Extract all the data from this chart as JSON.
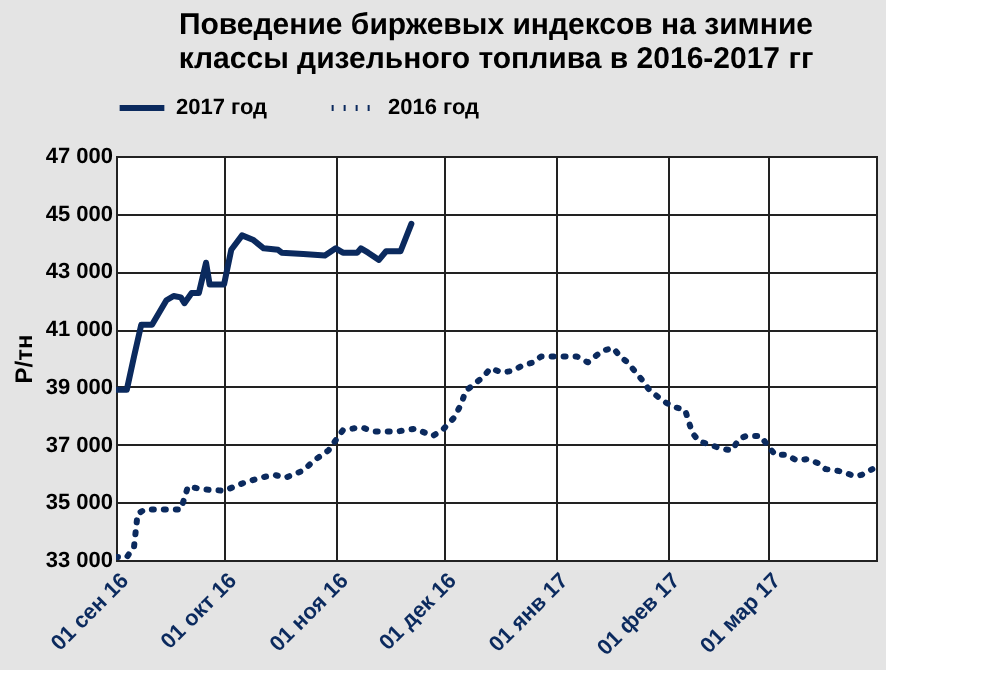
{
  "chart_data": {
    "type": "line",
    "title": [
      "Поведение биржевых индексов на зимние",
      "классы дизельного топлива в 2016-2017 гг"
    ],
    "ylabel": "Р/тн",
    "xlim": [
      "2016-09-01",
      "2017-03-31"
    ],
    "xticks": [
      {
        "value": "2016-09-01",
        "label": "01 сен 16"
      },
      {
        "value": "2016-10-01",
        "label": "01 окт 16"
      },
      {
        "value": "2016-11-01",
        "label": "01 ноя 16"
      },
      {
        "value": "2016-12-01",
        "label": "01 дек 16"
      },
      {
        "value": "2017-01-01",
        "label": "01 янв 17"
      },
      {
        "value": "2017-02-01",
        "label": "01 фев 17"
      },
      {
        "value": "2017-03-01",
        "label": "01 мар 17"
      }
    ],
    "ylim": [
      33000,
      47000
    ],
    "yticks": [
      {
        "value": 33000,
        "label": "33 000"
      },
      {
        "value": 35000,
        "label": "35 000"
      },
      {
        "value": 37000,
        "label": "37 000"
      },
      {
        "value": 39000,
        "label": "39 000"
      },
      {
        "value": 41000,
        "label": "41 000"
      },
      {
        "value": 43000,
        "label": "43 000"
      },
      {
        "value": 45000,
        "label": "45 000"
      },
      {
        "value": 47000,
        "label": "47 000"
      }
    ],
    "grid": true,
    "legend": "top",
    "series": [
      {
        "name": "2017 год",
        "color": "#0b2a5e",
        "line_style": "solid",
        "x": [
          "2016-09-01",
          "2016-09-04",
          "2016-09-06",
          "2016-09-08",
          "2016-09-11",
          "2016-09-15",
          "2016-09-17",
          "2016-09-19",
          "2016-09-20",
          "2016-09-22",
          "2016-09-24",
          "2016-09-26",
          "2016-09-27",
          "2016-10-01",
          "2016-10-03",
          "2016-10-06",
          "2016-10-09",
          "2016-10-12",
          "2016-10-16",
          "2016-10-17",
          "2016-10-23",
          "2016-10-29",
          "2016-11-01",
          "2016-11-03",
          "2016-11-07",
          "2016-11-08",
          "2016-11-10",
          "2016-11-13",
          "2016-11-15",
          "2016-11-19",
          "2016-11-22"
        ],
        "values": [
          38900,
          38900,
          40050,
          41150,
          41150,
          42000,
          42150,
          42100,
          41900,
          42250,
          42250,
          43300,
          42550,
          42550,
          43750,
          44250,
          44100,
          43800,
          43750,
          43650,
          43600,
          43550,
          43800,
          43650,
          43650,
          43800,
          43650,
          43400,
          43700,
          43700,
          44650
        ]
      },
      {
        "name": "2016 год",
        "color": "#0b2a5e",
        "line_style": "dotted",
        "x": [
          "2016-09-01",
          "2016-09-04",
          "2016-09-06",
          "2016-09-07",
          "2016-09-09",
          "2016-09-14",
          "2016-09-19",
          "2016-09-21",
          "2016-09-25",
          "2016-10-01",
          "2016-10-06",
          "2016-10-11",
          "2016-10-15",
          "2016-10-18",
          "2016-10-23",
          "2016-10-26",
          "2016-10-30",
          "2016-11-01",
          "2016-11-03",
          "2016-11-08",
          "2016-11-12",
          "2016-11-18",
          "2016-11-23",
          "2016-11-25",
          "2016-11-28",
          "2016-12-01",
          "2016-12-04",
          "2016-12-06",
          "2016-12-07",
          "2016-12-10",
          "2016-12-12",
          "2016-12-14",
          "2016-12-17",
          "2016-12-20",
          "2016-12-23",
          "2016-12-26",
          "2016-12-28",
          "2016-12-31",
          "2017-01-04",
          "2017-01-07",
          "2017-01-10",
          "2017-01-12",
          "2017-01-14",
          "2017-01-17",
          "2017-01-19",
          "2017-01-21",
          "2017-01-23",
          "2017-01-25",
          "2017-01-27",
          "2017-01-29",
          "2017-01-31",
          "2017-02-03",
          "2017-02-06",
          "2017-02-07",
          "2017-02-08",
          "2017-02-10",
          "2017-02-13",
          "2017-02-16",
          "2017-02-19",
          "2017-02-21",
          "2017-02-23",
          "2017-02-27",
          "2017-03-01",
          "2017-03-03",
          "2017-03-06",
          "2017-03-09",
          "2017-03-12",
          "2017-03-15",
          "2017-03-17",
          "2017-03-20",
          "2017-03-22",
          "2017-03-25",
          "2017-03-27",
          "2017-03-30"
        ],
        "values": [
          33100,
          33100,
          33450,
          34600,
          34750,
          34750,
          34750,
          35550,
          35450,
          35400,
          35650,
          35850,
          35950,
          35850,
          36100,
          36450,
          36800,
          37150,
          37500,
          37600,
          37450,
          37450,
          37550,
          37450,
          37300,
          37550,
          37950,
          38450,
          38850,
          39150,
          39350,
          39650,
          39500,
          39550,
          39750,
          39850,
          40050,
          40050,
          40050,
          40050,
          39850,
          40050,
          40250,
          40350,
          40050,
          39850,
          39550,
          39250,
          38900,
          38700,
          38500,
          38300,
          38200,
          37800,
          37400,
          37100,
          37000,
          36850,
          36800,
          37200,
          37300,
          37300,
          36950,
          36650,
          36650,
          36450,
          36500,
          36350,
          36150,
          36100,
          36050,
          35900,
          35950,
          36150
        ]
      }
    ]
  }
}
